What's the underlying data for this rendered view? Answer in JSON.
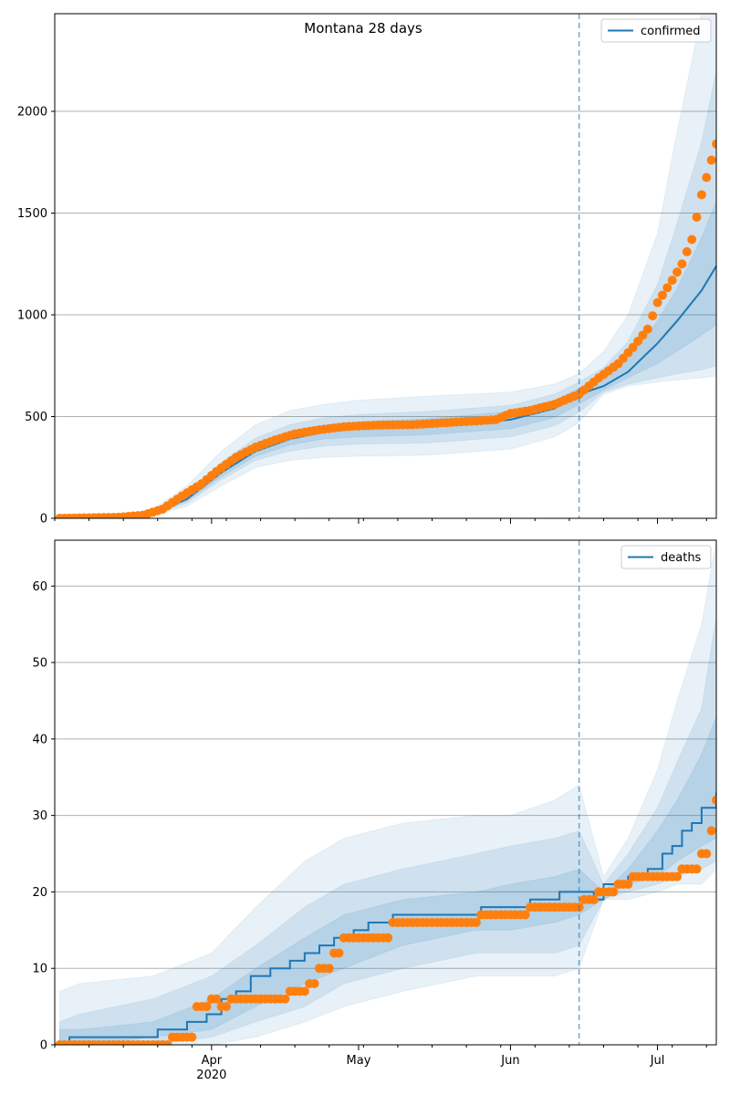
{
  "chart_data": [
    {
      "type": "line",
      "title": "Montana 28 days",
      "xlabel": "",
      "ylabel": "",
      "ylim": [
        0,
        2480
      ],
      "yticks": [
        0,
        500,
        1000,
        1500,
        2000
      ],
      "grid": "horizontal",
      "legend": {
        "position": "top-right",
        "entries": [
          "confirmed"
        ]
      },
      "forecast_start": "2020-06-15",
      "series": [
        {
          "name": "confirmed",
          "kind": "model_median_line",
          "x": [
            "2020-03-01",
            "2020-03-13",
            "2020-03-20",
            "2020-03-27",
            "2020-04-03",
            "2020-04-10",
            "2020-04-17",
            "2020-04-24",
            "2020-05-01",
            "2020-05-15",
            "2020-06-01",
            "2020-06-10",
            "2020-06-15",
            "2020-06-20",
            "2020-06-25",
            "2020-07-01",
            "2020-07-05",
            "2020-07-10",
            "2020-07-13"
          ],
          "values": [
            0,
            2,
            20,
            95,
            225,
            330,
            390,
            425,
            440,
            450,
            485,
            540,
            610,
            650,
            720,
            860,
            970,
            1120,
            1240
          ]
        },
        {
          "name": "",
          "kind": "observed_points",
          "x": [
            "2020-03-01",
            "2020-03-13",
            "2020-03-18",
            "2020-03-22",
            "2020-03-26",
            "2020-03-30",
            "2020-04-02",
            "2020-04-06",
            "2020-04-10",
            "2020-04-14",
            "2020-04-18",
            "2020-04-23",
            "2020-04-28",
            "2020-05-05",
            "2020-05-12",
            "2020-05-19",
            "2020-05-26",
            "2020-05-29",
            "2020-06-01",
            "2020-06-05",
            "2020-06-10",
            "2020-06-15",
            "2020-06-19",
            "2020-06-23",
            "2020-06-26",
            "2020-06-29",
            "2020-07-01",
            "2020-07-04",
            "2020-07-06",
            "2020-07-08",
            "2020-07-10",
            "2020-07-12",
            "2020-07-13"
          ],
          "values": [
            0,
            5,
            15,
            45,
            110,
            170,
            230,
            300,
            350,
            385,
            415,
            435,
            450,
            458,
            460,
            470,
            480,
            485,
            515,
            530,
            560,
            610,
            690,
            760,
            840,
            930,
            1060,
            1170,
            1250,
            1370,
            1590,
            1760,
            1840
          ]
        }
      ],
      "bands": [
        {
          "level": "outer",
          "x": [
            "2020-03-01",
            "2020-03-13",
            "2020-03-20",
            "2020-03-27",
            "2020-04-03",
            "2020-04-10",
            "2020-04-17",
            "2020-04-24",
            "2020-05-01",
            "2020-05-15",
            "2020-06-01",
            "2020-06-10",
            "2020-06-15",
            "2020-06-20",
            "2020-06-25",
            "2020-07-01",
            "2020-07-05",
            "2020-07-10",
            "2020-07-13"
          ],
          "lower": [
            0,
            0,
            10,
            60,
            160,
            250,
            285,
            300,
            305,
            310,
            340,
            400,
            470,
            610,
            650,
            670,
            680,
            690,
            700
          ],
          "upper": [
            5,
            8,
            45,
            160,
            330,
            460,
            530,
            560,
            580,
            600,
            620,
            660,
            710,
            820,
            1000,
            1400,
            1900,
            2480,
            2480
          ]
        },
        {
          "level": "middle",
          "x": [
            "2020-03-01",
            "2020-03-13",
            "2020-03-20",
            "2020-03-27",
            "2020-04-03",
            "2020-04-10",
            "2020-04-17",
            "2020-04-24",
            "2020-05-01",
            "2020-05-15",
            "2020-06-01",
            "2020-06-10",
            "2020-06-15",
            "2020-06-20",
            "2020-06-25",
            "2020-07-01",
            "2020-07-05",
            "2020-07-10",
            "2020-07-13"
          ],
          "lower": [
            0,
            1,
            14,
            75,
            190,
            285,
            330,
            355,
            365,
            370,
            400,
            455,
            520,
            620,
            660,
            690,
            710,
            730,
            750
          ],
          "upper": [
            3,
            5,
            32,
            125,
            275,
            395,
            460,
            495,
            510,
            525,
            555,
            610,
            670,
            740,
            870,
            1150,
            1450,
            1850,
            2200
          ]
        },
        {
          "level": "inner",
          "x": [
            "2020-03-01",
            "2020-03-13",
            "2020-03-20",
            "2020-03-27",
            "2020-04-03",
            "2020-04-10",
            "2020-04-17",
            "2020-04-24",
            "2020-05-01",
            "2020-05-15",
            "2020-06-01",
            "2020-06-10",
            "2020-06-15",
            "2020-06-20",
            "2020-06-25",
            "2020-07-01",
            "2020-07-05",
            "2020-07-10",
            "2020-07-13"
          ],
          "lower": [
            0,
            1,
            17,
            85,
            205,
            305,
            360,
            390,
            400,
            410,
            440,
            495,
            560,
            630,
            690,
            760,
            820,
            900,
            950
          ],
          "upper": [
            2,
            3,
            25,
            108,
            245,
            355,
            420,
            455,
            475,
            490,
            525,
            580,
            640,
            690,
            780,
            970,
            1130,
            1380,
            1560
          ]
        }
      ]
    },
    {
      "type": "line",
      "title": "",
      "xlabel": "",
      "ylabel": "",
      "ylim": [
        0,
        66
      ],
      "yticks": [
        0,
        10,
        20,
        30,
        40,
        50,
        60
      ],
      "grid": "horizontal",
      "legend": {
        "position": "top-right",
        "entries": [
          "deaths"
        ]
      },
      "forecast_start": "2020-06-15",
      "xticks": [
        {
          "date": "2020-04-01",
          "label": "Apr",
          "sublabel": "2020"
        },
        {
          "date": "2020-05-01",
          "label": "May",
          "sublabel": ""
        },
        {
          "date": "2020-06-01",
          "label": "Jun",
          "sublabel": ""
        },
        {
          "date": "2020-07-01",
          "label": "Jul",
          "sublabel": ""
        }
      ],
      "series": [
        {
          "name": "deaths",
          "kind": "model_median_step",
          "x": [
            "2020-03-01",
            "2020-03-03",
            "2020-03-21",
            "2020-03-27",
            "2020-03-31",
            "2020-04-03",
            "2020-04-06",
            "2020-04-09",
            "2020-04-13",
            "2020-04-17",
            "2020-04-20",
            "2020-04-23",
            "2020-04-26",
            "2020-04-30",
            "2020-05-03",
            "2020-05-08",
            "2020-05-15",
            "2020-05-26",
            "2020-06-01",
            "2020-06-05",
            "2020-06-11",
            "2020-06-15",
            "2020-06-18",
            "2020-06-20",
            "2020-06-25",
            "2020-06-29",
            "2020-07-02",
            "2020-07-04",
            "2020-07-06",
            "2020-07-08",
            "2020-07-10",
            "2020-07-13"
          ],
          "values": [
            0,
            1,
            2,
            3,
            4,
            6,
            7,
            9,
            10,
            11,
            12,
            13,
            14,
            15,
            16,
            17,
            17,
            18,
            18,
            19,
            20,
            20,
            19,
            21,
            22,
            23,
            25,
            26,
            28,
            29,
            31,
            33
          ]
        },
        {
          "name": "",
          "kind": "observed_points",
          "x": [
            "2020-03-01",
            "2020-03-10",
            "2020-03-20",
            "2020-03-24",
            "2020-03-27",
            "2020-03-29",
            "2020-04-01",
            "2020-04-03",
            "2020-04-05",
            "2020-04-08",
            "2020-04-11",
            "2020-04-14",
            "2020-04-17",
            "2020-04-19",
            "2020-04-21",
            "2020-04-23",
            "2020-04-26",
            "2020-04-28",
            "2020-05-01",
            "2020-05-08",
            "2020-05-15",
            "2020-05-22",
            "2020-05-26",
            "2020-06-01",
            "2020-06-05",
            "2020-06-10",
            "2020-06-13",
            "2020-06-16",
            "2020-06-19",
            "2020-06-23",
            "2020-06-26",
            "2020-06-29",
            "2020-07-02",
            "2020-07-06",
            "2020-07-08",
            "2020-07-10",
            "2020-07-12",
            "2020-07-13"
          ],
          "values": [
            0,
            0,
            0,
            1,
            1,
            5,
            6,
            5,
            6,
            6,
            6,
            6,
            7,
            7,
            8,
            10,
            12,
            14,
            14,
            16,
            16,
            16,
            17,
            17,
            18,
            18,
            18,
            19,
            20,
            21,
            22,
            22,
            22,
            23,
            23,
            25,
            28,
            32
          ]
        }
      ],
      "bands": [
        {
          "level": "outer",
          "x": [
            "2020-03-01",
            "2020-03-05",
            "2020-03-20",
            "2020-04-01",
            "2020-04-10",
            "2020-04-20",
            "2020-04-28",
            "2020-05-10",
            "2020-05-25",
            "2020-06-01",
            "2020-06-10",
            "2020-06-15",
            "2020-06-20",
            "2020-06-25",
            "2020-07-01",
            "2020-07-05",
            "2020-07-10",
            "2020-07-13"
          ],
          "lower": [
            0,
            0,
            0,
            0,
            1,
            3,
            5,
            7,
            9,
            9,
            9,
            10,
            19,
            19,
            20,
            21,
            21,
            23
          ],
          "upper": [
            7,
            8,
            9,
            12,
            18,
            24,
            27,
            29,
            30,
            30,
            32,
            34,
            22,
            27,
            36,
            45,
            55,
            66
          ]
        },
        {
          "level": "middle",
          "x": [
            "2020-03-01",
            "2020-03-05",
            "2020-03-20",
            "2020-04-01",
            "2020-04-10",
            "2020-04-20",
            "2020-04-28",
            "2020-05-10",
            "2020-05-25",
            "2020-06-01",
            "2020-06-10",
            "2020-06-15",
            "2020-06-20",
            "2020-06-25",
            "2020-07-01",
            "2020-07-05",
            "2020-07-10",
            "2020-07-13"
          ],
          "lower": [
            0,
            0,
            0,
            1,
            3,
            5,
            8,
            10,
            12,
            12,
            12,
            13,
            19,
            20,
            21,
            22,
            23,
            24
          ],
          "upper": [
            3,
            4,
            6,
            9,
            13,
            18,
            21,
            23,
            25,
            26,
            27,
            28,
            21,
            25,
            31,
            37,
            44,
            56
          ]
        },
        {
          "level": "inner",
          "x": [
            "2020-03-01",
            "2020-03-05",
            "2020-03-20",
            "2020-04-01",
            "2020-04-10",
            "2020-04-20",
            "2020-04-28",
            "2020-05-10",
            "2020-05-25",
            "2020-06-01",
            "2020-06-10",
            "2020-06-15",
            "2020-06-20",
            "2020-06-25",
            "2020-07-01",
            "2020-07-05",
            "2020-07-10",
            "2020-07-13"
          ],
          "lower": [
            0,
            0,
            1,
            2,
            5,
            8,
            10,
            13,
            15,
            15,
            16,
            17,
            19,
            21,
            22,
            24,
            26,
            27
          ],
          "upper": [
            2,
            2,
            3,
            6,
            10,
            14,
            17,
            19,
            20,
            21,
            22,
            23,
            20,
            23,
            28,
            32,
            38,
            43
          ]
        }
      ]
    }
  ],
  "colors": {
    "median_line": "#1f77b4",
    "observed_points": "#ff7f0e",
    "band_fill": "#1f77b4",
    "forecast_line": "#1f77b4",
    "grid": "#b0b0b0"
  }
}
